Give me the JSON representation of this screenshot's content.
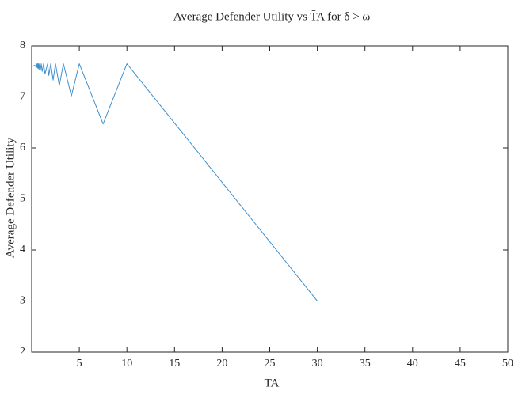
{
  "chart_data": {
    "type": "line",
    "title": "Average Defender Utility vs T̄A for δ > ω",
    "x_label": "T̄A",
    "y_label": "Average Defender Utility",
    "x": [
      0.1,
      0.3,
      0.5,
      0.56,
      0.6,
      0.625,
      0.67,
      0.71,
      0.77,
      0.83,
      0.91,
      1.0,
      1.1,
      1.25,
      1.4,
      1.67,
      1.8,
      2.0,
      2.25,
      2.5,
      2.9,
      3.33,
      4.17,
      5,
      7.5,
      10,
      30,
      50
    ],
    "series": [
      {
        "name": "Average Defender Utility",
        "color": "#3d8fcf",
        "values": [
          7.6,
          7.62,
          7.58,
          7.65,
          7.57,
          7.65,
          7.56,
          7.65,
          7.54,
          7.65,
          7.52,
          7.65,
          7.5,
          7.65,
          7.45,
          7.65,
          7.42,
          7.65,
          7.33,
          7.65,
          7.22,
          7.65,
          7.02,
          7.65,
          6.47,
          7.65,
          3.0,
          3.0
        ]
      }
    ],
    "xlim": [
      0,
      50
    ],
    "xticks": [
      5,
      10,
      15,
      20,
      25,
      30,
      35,
      40,
      45,
      50
    ],
    "ylim": [
      2,
      8
    ],
    "yticks": [
      2,
      3,
      4,
      5,
      6,
      7,
      8
    ]
  }
}
